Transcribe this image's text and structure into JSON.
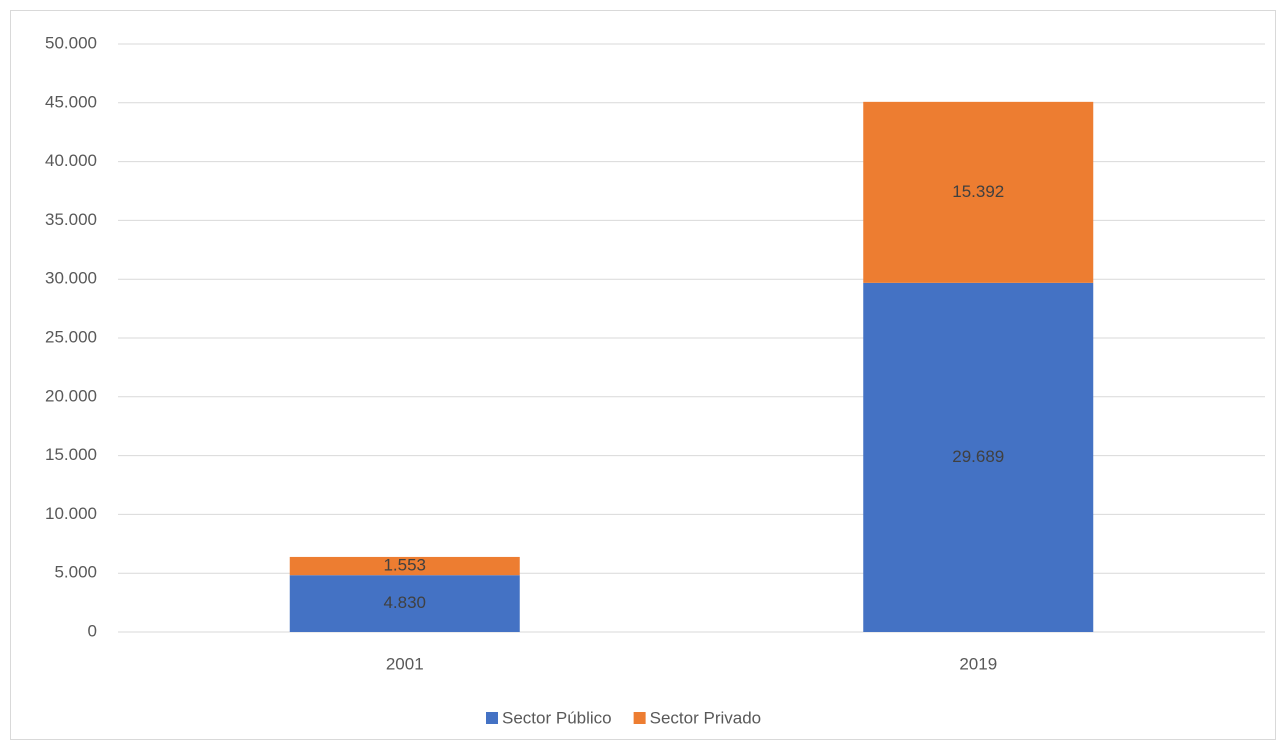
{
  "chart_data": {
    "type": "stacked_bar",
    "categories": [
      "2001",
      "2019"
    ],
    "series": [
      {
        "name": "Sector Público",
        "color": "#4472c4",
        "values": [
          4830,
          29689
        ],
        "value_labels": [
          "4.830",
          "29.689"
        ]
      },
      {
        "name": "Sector Privado",
        "color": "#ed7d31",
        "values": [
          1553,
          15392
        ],
        "value_labels": [
          "1.553",
          "15.392"
        ]
      }
    ],
    "ylim": [
      0,
      50000
    ],
    "yticks": [
      0,
      {
        "value": 5000,
        "label": "5.000"
      },
      {
        "value": 10000,
        "label": "10.000"
      },
      {
        "value": 15000,
        "label": "15.000"
      },
      {
        "value": 20000,
        "label": "20.000"
      },
      {
        "value": 25000,
        "label": "25.000"
      },
      {
        "value": 30000,
        "label": "30.000"
      },
      {
        "value": 35000,
        "label": "35.000"
      },
      {
        "value": 40000,
        "label": "40.000"
      },
      {
        "value": 45000,
        "label": "45.000"
      },
      {
        "value": 50000,
        "label": "50.000"
      }
    ],
    "grid": true,
    "legend": "bottom"
  }
}
